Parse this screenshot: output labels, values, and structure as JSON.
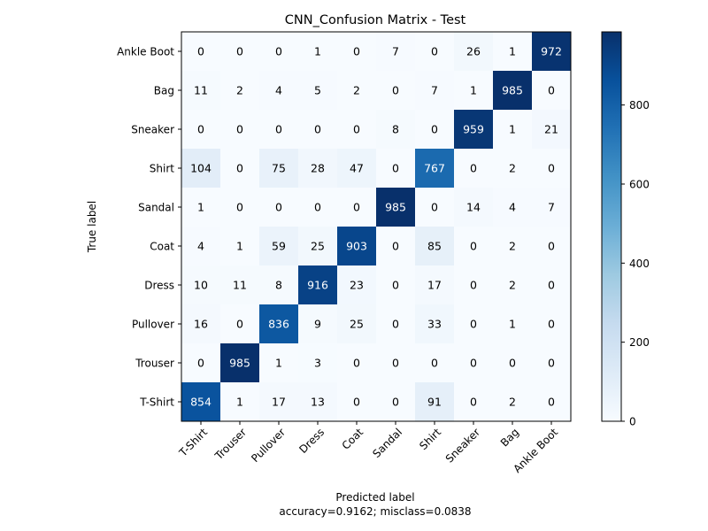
{
  "chart_data": {
    "type": "heatmap",
    "title": "CNN_Confusion Matrix - Test",
    "xlabel": "Predicted label",
    "ylabel": "True label",
    "note": "accuracy=0.9162; misclass=0.0838",
    "x_categories": [
      "T-Shirt",
      "Trouser",
      "Pullover",
      "Dress",
      "Coat",
      "Sandal",
      "Shirt",
      "Sneaker",
      "Bag",
      "Ankle Boot"
    ],
    "y_categories": [
      "Ankle Boot",
      "Bag",
      "Sneaker",
      "Shirt",
      "Sandal",
      "Coat",
      "Dress",
      "Pullover",
      "Trouser",
      "T-Shirt"
    ],
    "matrix": [
      [
        0,
        0,
        0,
        1,
        0,
        7,
        0,
        26,
        1,
        972
      ],
      [
        11,
        2,
        4,
        5,
        2,
        0,
        7,
        1,
        985,
        0
      ],
      [
        0,
        0,
        0,
        0,
        0,
        8,
        0,
        959,
        1,
        21
      ],
      [
        104,
        0,
        75,
        28,
        47,
        0,
        767,
        0,
        2,
        0
      ],
      [
        1,
        0,
        0,
        0,
        0,
        985,
        0,
        14,
        4,
        7
      ],
      [
        4,
        1,
        59,
        25,
        903,
        0,
        85,
        0,
        2,
        0
      ],
      [
        10,
        11,
        8,
        916,
        23,
        0,
        17,
        0,
        2,
        0
      ],
      [
        16,
        0,
        836,
        9,
        25,
        0,
        33,
        0,
        1,
        0
      ],
      [
        0,
        985,
        1,
        3,
        0,
        0,
        0,
        0,
        0,
        0
      ],
      [
        854,
        1,
        17,
        13,
        0,
        0,
        91,
        0,
        2,
        0
      ]
    ],
    "colormap": "Blues",
    "color_range": [
      0,
      985
    ],
    "colorbar_ticks": [
      0,
      200,
      400,
      600,
      800
    ],
    "colors": {
      "low": "#f7fbff",
      "high": "#08306b"
    }
  }
}
